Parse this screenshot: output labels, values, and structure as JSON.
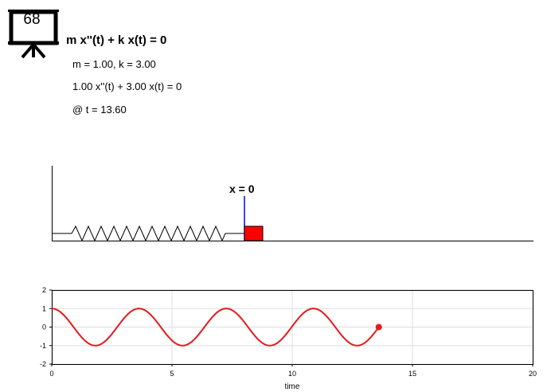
{
  "header": {
    "frame_number": "68",
    "equation": "m x''(t) + k x(t) = 0",
    "params": "m = 1.00, k = 3.00",
    "equation_numeric": "1.00 x''(t) + 3.00 x(t) = 0",
    "time_label": "@ t = 13.60"
  },
  "animation": {
    "equilibrium_label": "x = 0",
    "mass_color": "#ff0000",
    "marker_color": "#0000ff"
  },
  "chart_data": {
    "type": "line",
    "xlabel": "time",
    "ylabel": "",
    "xlim": [
      0,
      20
    ],
    "ylim": [
      -2,
      2
    ],
    "xticks": [
      0,
      5,
      10,
      15,
      20
    ],
    "yticks": [
      -2,
      -1,
      0,
      1,
      2
    ],
    "grid": true,
    "series": [
      {
        "color": "#e41a1c",
        "function": "x(t) = cos(sqrt(k/m) t)",
        "x": [
          0,
          13.6
        ],
        "current_point": {
          "t": 13.6,
          "x": 0.0
        }
      }
    ],
    "params": {
      "m": 1.0,
      "k": 3.0
    }
  }
}
